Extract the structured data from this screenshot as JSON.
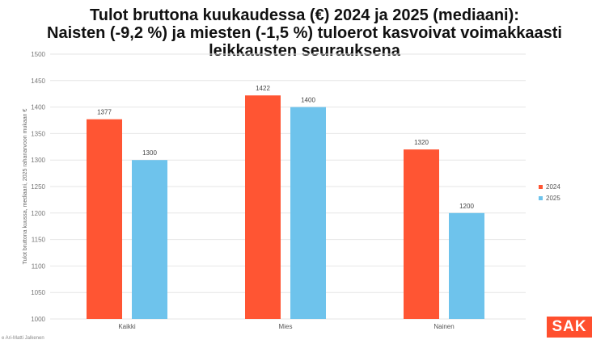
{
  "title_lines": [
    "Tulot bruttona kuukaudessa (€) 2024 ja 2025 (mediaani):",
    "Naisten (-9,2 %) ja miesten (-1,5 %) tuloerot kasvoivat voimakkaasti",
    "leikkausten seurauksena"
  ],
  "logo_text": "SAK",
  "caption_text": "e Ari-Matti Jalkenen",
  "colors": {
    "y2024": "#ff5533",
    "y2025": "#6ec3ec",
    "grid": "#e6e6e6"
  },
  "chart_data": {
    "type": "bar",
    "title": "Tulot bruttona kuukaudessa (€) 2024 ja 2025 (mediaani): Naisten (-9,2 %) ja miesten (-1,5 %) tuloerot kasvoivat voimakkaasti leikkausten seurauksena",
    "categories": [
      "Kaikki",
      "Mies",
      "Nainen"
    ],
    "series": [
      {
        "name": "2024",
        "values": [
          1377,
          1422,
          1320
        ]
      },
      {
        "name": "2025",
        "values": [
          1300,
          1400,
          1200
        ]
      }
    ],
    "xlabel": "",
    "ylabel": "Tulot bruttona kuussa, mediaani, 2025 rahanarvoon mukaan €",
    "ylim": [
      1000,
      1500
    ],
    "yticks": [
      1000,
      1050,
      1100,
      1150,
      1200,
      1250,
      1300,
      1350,
      1400,
      1450,
      1500
    ],
    "grid": true,
    "legend_position": "right"
  }
}
